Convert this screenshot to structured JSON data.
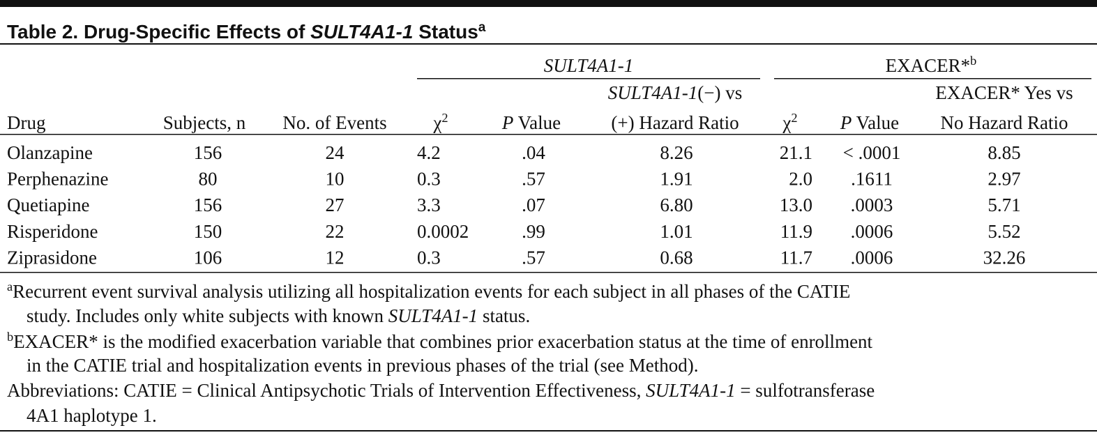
{
  "title": [
    {
      "t": "Table 2. Drug-Specific Effects of "
    },
    {
      "t": "SULT4A1-1",
      "i": true
    },
    {
      "t": " Status"
    },
    {
      "t": "a",
      "sup": true
    }
  ],
  "table": {
    "group_headers": [
      [
        {
          "t": "SULT4A1-1",
          "i": true
        }
      ],
      [
        {
          "t": "EXACER*"
        },
        {
          "t": "b",
          "sup": true
        }
      ]
    ],
    "columns": [
      [
        [
          {
            "t": "Drug"
          }
        ]
      ],
      [
        [
          {
            "t": "Subjects, n"
          }
        ]
      ],
      [
        [
          {
            "t": "No. of Events"
          }
        ]
      ],
      [
        [
          {
            "t": "χ"
          },
          {
            "t": "2",
            "sup": true
          }
        ]
      ],
      [
        [
          {
            "t": "P",
            "i": true
          },
          {
            "t": " Value"
          }
        ]
      ],
      [
        [
          {
            "t": "SULT4A1-1",
            "i": true
          },
          {
            "t": "(−) vs"
          }
        ],
        [
          {
            "t": "(+) Hazard Ratio"
          }
        ]
      ],
      [
        [
          {
            "t": "χ"
          },
          {
            "t": "2",
            "sup": true
          }
        ]
      ],
      [
        [
          {
            "t": "P",
            "i": true
          },
          {
            "t": " Value"
          }
        ]
      ],
      [
        [
          {
            "t": "EXACER* Yes vs"
          }
        ],
        [
          {
            "t": "No Hazard Ratio"
          }
        ]
      ]
    ],
    "rows": [
      [
        "Olanzapine",
        "156",
        "24",
        "4.2",
        ".04",
        "8.26",
        "21.1",
        "< .0001",
        "8.85"
      ],
      [
        "Perphenazine",
        "80",
        "10",
        "0.3",
        ".57",
        "1.91",
        "2.0",
        ".1611",
        "2.97"
      ],
      [
        "Quetiapine",
        "156",
        "27",
        "3.3",
        ".07",
        "6.80",
        "13.0",
        ".0003",
        "5.71"
      ],
      [
        "Risperidone",
        "150",
        "22",
        "0.0002",
        ".99",
        "1.01",
        "11.9",
        ".0006",
        "5.52"
      ],
      [
        "Ziprasidone",
        "106",
        "12",
        "0.3",
        ".57",
        "0.68",
        "11.7",
        ".0006",
        "32.26"
      ]
    ]
  },
  "footnotes": [
    [
      [
        {
          "t": "a",
          "sup": true
        },
        {
          "t": "Recurrent event survival analysis utilizing all hospitalization events for each subject in all phases of the CATIE"
        }
      ],
      [
        {
          "t": "study. Includes only white subjects with known "
        },
        {
          "t": "SULT4A1-1",
          "i": true
        },
        {
          "t": " status."
        }
      ]
    ],
    [
      [
        {
          "t": "b",
          "sup": true
        },
        {
          "t": "EXACER* is the modified exacerbation variable that combines prior exacerbation status at the time of enrollment"
        }
      ],
      [
        {
          "t": "in the CATIE trial and hospitalization events in previous phases of the trial (see Method)."
        }
      ]
    ],
    [
      [
        {
          "t": "Abbreviations: CATIE = Clinical Antipsychotic Trials of Intervention Effectiveness, "
        },
        {
          "t": "SULT4A1-1",
          "i": true
        },
        {
          "t": " = sulfotransferase"
        }
      ],
      [
        {
          "t": "4A1 haplotype 1."
        }
      ]
    ]
  ]
}
